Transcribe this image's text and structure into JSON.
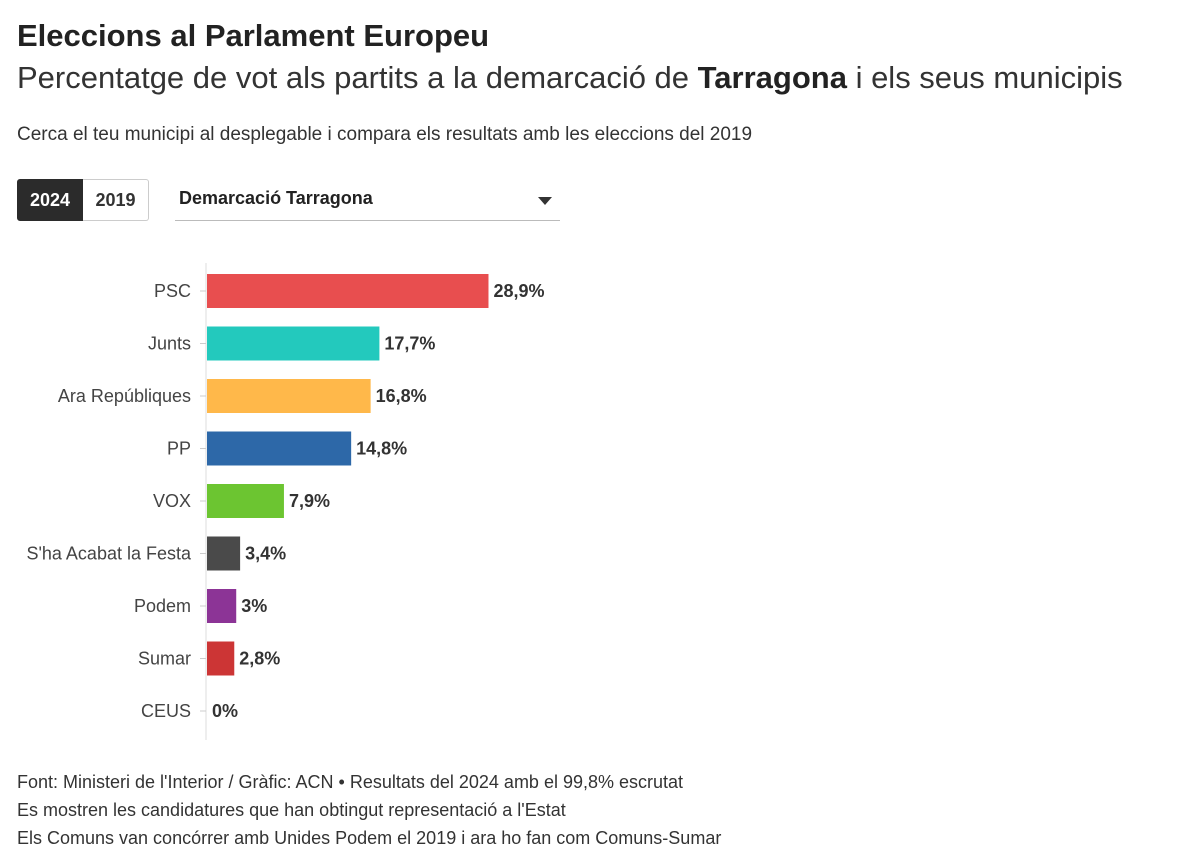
{
  "header": {
    "title": "Eleccions al Parlament Europeu",
    "subtitle_pre": "Percentatge de vot als partits a la demarcació de ",
    "subtitle_bold": "Tarragona",
    "subtitle_post": " i els seus municipis",
    "note": "Cerca el teu municipi al desplegable i compara els resultats amb les eleccions del 2019"
  },
  "controls": {
    "years": [
      "2024",
      "2019"
    ],
    "selected_year": "2024",
    "dropdown_value": "Demarcació Tarragona"
  },
  "chart_data": {
    "type": "bar",
    "orientation": "horizontal",
    "categories": [
      "PSC",
      "Junts",
      "Ara Repúbliques",
      "PP",
      "VOX",
      "S'ha Acabat la Festa",
      "Podem",
      "Sumar",
      "CEUS"
    ],
    "values": [
      28.9,
      17.7,
      16.8,
      14.8,
      7.9,
      3.4,
      3,
      2.8,
      0
    ],
    "value_labels": [
      "28,9%",
      "17,7%",
      "16,8%",
      "14,8%",
      "7,9%",
      "3,4%",
      "3%",
      "2,8%",
      "0%"
    ],
    "colors": [
      "#e84e4f",
      "#23c9bd",
      "#ffb84a",
      "#2d68a8",
      "#6cc531",
      "#4a4a4a",
      "#8c3496",
      "#cc3535",
      "#999999"
    ],
    "xlim": [
      0,
      100
    ],
    "grid": false
  },
  "footer": {
    "lines": [
      "Font: Ministeri de l'Interior / Gràfic: ACN • Resultats del 2024 amb el 99,8% escrutat",
      "Es mostren les candidatures que han obtingut representació a l'Estat",
      "Els Comuns van concórrer amb Unides Podem el 2019 i ara ho fan com Comuns-Sumar"
    ]
  }
}
